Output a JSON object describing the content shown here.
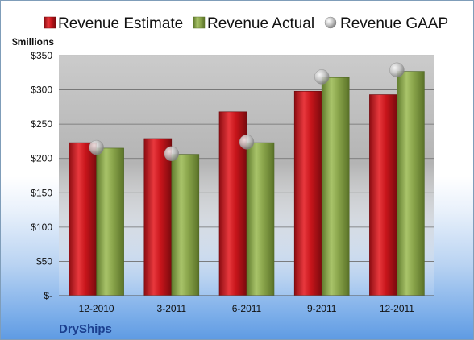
{
  "chart_data": {
    "type": "bar",
    "ylabel": "$millions",
    "company": "DryShips",
    "categories": [
      "12-2010",
      "3-2011",
      "6-2011",
      "9-2011",
      "12-2011"
    ],
    "series": [
      {
        "name": "Revenue Estimate",
        "kind": "bar",
        "color": "#c0161c",
        "values": [
          223,
          229,
          268,
          298,
          293
        ]
      },
      {
        "name": "Revenue Actual",
        "kind": "bar",
        "color": "#86a048",
        "values": [
          215,
          206,
          223,
          318,
          327
        ]
      },
      {
        "name": "Revenue GAAP",
        "kind": "marker",
        "color": "#b8b8b8",
        "values": [
          216,
          207,
          224,
          319,
          329
        ]
      }
    ],
    "ylim": [
      0,
      350
    ],
    "yticks": [
      0,
      50,
      100,
      150,
      200,
      250,
      300,
      350
    ],
    "ytick_labels": [
      "$-",
      "$50",
      "$100",
      "$150",
      "$200",
      "$250",
      "$300",
      "$350"
    ],
    "grid": true,
    "legend_position": "top"
  }
}
